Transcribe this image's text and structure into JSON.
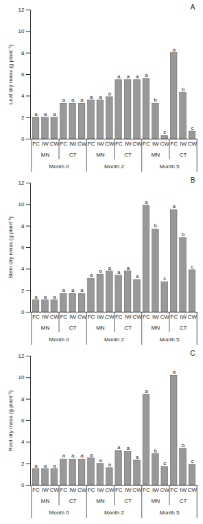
{
  "chart_data": [
    {
      "type": "bar",
      "title": "A",
      "y_label": "Leaf dry mass (g plant⁻¹)",
      "categories": [
        "FC",
        "IW",
        "CW",
        "FC",
        "IW",
        "CW",
        "FC",
        "IW",
        "CW",
        "FC",
        "IW",
        "CW",
        "FC",
        "IW",
        "CW",
        "FC",
        "IW",
        "CW"
      ],
      "groups": [
        "MN",
        "CT",
        "MN",
        "CT",
        "MN",
        "CT"
      ],
      "months": [
        "Month 0",
        "Month 2",
        "Month 5"
      ],
      "values": [
        2.0,
        2.0,
        2.0,
        3.3,
        3.3,
        3.3,
        3.6,
        3.6,
        3.9,
        5.5,
        5.5,
        5.5,
        5.6,
        3.3,
        0.3,
        8.0,
        4.3,
        0.7
      ],
      "letters": [
        "a",
        "a",
        "a",
        "a",
        "a",
        "a",
        "a",
        "a",
        "a",
        "a",
        "a",
        "a",
        "a",
        "b",
        "c",
        "a",
        "b",
        "c"
      ],
      "color": "#999999",
      "ylim": [
        0,
        12
      ],
      "yticks": [
        0,
        2,
        4,
        6,
        8,
        10,
        12
      ]
    },
    {
      "type": "bar",
      "title": "B",
      "y_label": "Stem dry mass (g plant⁻¹)",
      "categories": [
        "FC",
        "IW",
        "CW",
        "FC",
        "IW",
        "CW",
        "FC",
        "IW",
        "CW",
        "FC",
        "IW",
        "CW",
        "FC",
        "IW",
        "CW",
        "FC",
        "IW",
        "CW"
      ],
      "groups": [
        "MN",
        "CT",
        "MN",
        "CT",
        "MN",
        "CT"
      ],
      "months": [
        "Month 0",
        "Month 2",
        "Month 5"
      ],
      "values": [
        1.1,
        1.1,
        1.1,
        1.7,
        1.7,
        1.7,
        3.1,
        3.5,
        3.8,
        3.4,
        3.8,
        3.0,
        9.9,
        7.7,
        2.8,
        9.5,
        6.9,
        3.9
      ],
      "letters": [
        "a",
        "a",
        "a",
        "a",
        "a",
        "a",
        "a",
        "a",
        "a",
        "a",
        "a",
        "a",
        "a",
        "b",
        "c",
        "a",
        "b",
        "c"
      ],
      "color": "#999999",
      "ylim": [
        0,
        12
      ],
      "yticks": [
        0,
        2,
        4,
        6,
        8,
        10,
        12
      ]
    },
    {
      "type": "bar",
      "title": "C",
      "y_label": "Root dry mass (g plant⁻¹)",
      "categories": [
        "FC",
        "IW",
        "CW",
        "FC",
        "IW",
        "CW",
        "FC",
        "IW",
        "CW",
        "FC",
        "IW",
        "CW",
        "FC",
        "IW",
        "CW",
        "FC",
        "IW",
        "CW"
      ],
      "groups": [
        "MN",
        "CT",
        "MN",
        "CT",
        "MN",
        "CT"
      ],
      "months": [
        "Month 0",
        "Month 2",
        "Month 5"
      ],
      "values": [
        1.5,
        1.5,
        1.5,
        2.4,
        2.4,
        2.4,
        2.5,
        2.0,
        1.6,
        3.2,
        3.1,
        2.3,
        8.4,
        2.9,
        1.7,
        10.2,
        3.4,
        1.9
      ],
      "letters": [
        "a",
        "a",
        "a",
        "a",
        "a",
        "a",
        "a",
        "a",
        "a",
        "a",
        "a",
        "a",
        "a",
        "b",
        "c",
        "a",
        "b",
        "c"
      ],
      "color": "#999999",
      "ylim": [
        0,
        12
      ],
      "yticks": [
        0,
        2,
        4,
        6,
        8,
        10,
        12
      ]
    }
  ]
}
